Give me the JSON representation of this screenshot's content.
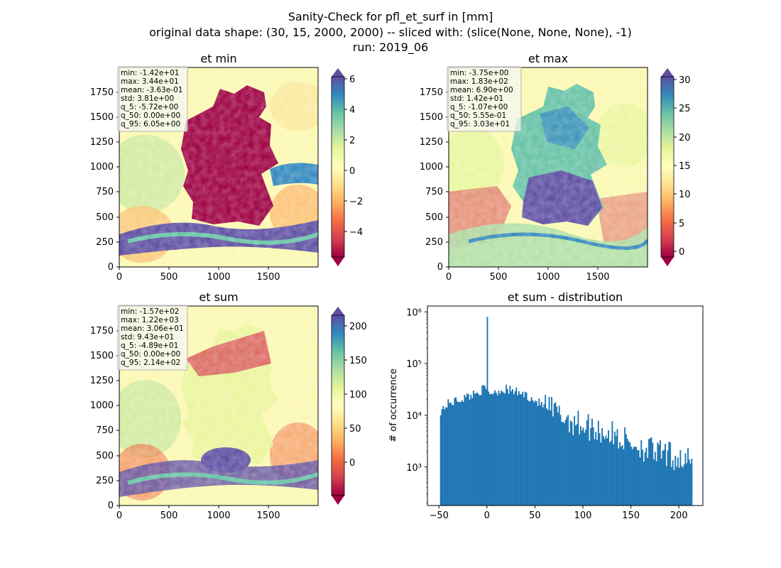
{
  "figure": {
    "title_lines": [
      "Sanity-Check for pfl_et_surf in [mm]",
      "original data shape: (30, 15, 2000, 2000) -- sliced with: (slice(None, None, None), -1)",
      "run: 2019_06"
    ]
  },
  "colors": {
    "hist_bar": "#1f77b4",
    "map_background": "#fbf8b0",
    "germany_dark": "#9e0142",
    "blue_high": "#5e4fa2"
  },
  "chart_data": [
    {
      "type": "heatmap",
      "title": "et min",
      "colormap": "Spectral",
      "xlim": [
        0,
        2000
      ],
      "ylim": [
        0,
        2000
      ],
      "x_ticks": [
        "0",
        "500",
        "1000",
        "1500"
      ],
      "y_ticks": [
        "0",
        "250",
        "500",
        "750",
        "1000",
        "1250",
        "1500",
        "1750"
      ],
      "colorbar": {
        "ticks": [
          "−4",
          "−2",
          "0",
          "2",
          "4",
          "6"
        ],
        "vmin": -5.72,
        "vmax": 6.05,
        "extend": "both"
      },
      "stats": [
        "min: -1.42e+01",
        "max: 3.44e+01",
        "mean: -3.63e-01",
        "std: 3.81e+00",
        "q_5: -5.72e+00",
        "q_50: 0.00e+00",
        "q_95: 6.05e+00"
      ]
    },
    {
      "type": "heatmap",
      "title": "et max",
      "colormap": "Spectral",
      "xlim": [
        0,
        2000
      ],
      "ylim": [
        0,
        2000
      ],
      "x_ticks": [
        "0",
        "500",
        "1000",
        "1500"
      ],
      "y_ticks": [
        "0",
        "250",
        "500",
        "750",
        "1000",
        "1250",
        "1500",
        "1750"
      ],
      "colorbar": {
        "ticks": [
          "0",
          "5",
          "10",
          "15",
          "20",
          "25",
          "30"
        ],
        "vmin": -1.07,
        "vmax": 30.3,
        "extend": "both"
      },
      "stats": [
        "min: -3.75e+00",
        "max: 1.83e+02",
        "mean: 6.90e+00",
        "std: 1.42e+01",
        "q_5: -1.07e+00",
        "q_50: 5.55e-01",
        "q_95: 3.03e+01"
      ]
    },
    {
      "type": "heatmap",
      "title": "et sum",
      "colormap": "Spectral",
      "xlim": [
        0,
        2000
      ],
      "ylim": [
        0,
        2000
      ],
      "x_ticks": [
        "0",
        "500",
        "1000",
        "1500"
      ],
      "y_ticks": [
        "0",
        "250",
        "500",
        "750",
        "1000",
        "1250",
        "1500",
        "1750"
      ],
      "colorbar": {
        "ticks": [
          "0",
          "50",
          "100",
          "150",
          "200"
        ],
        "vmin": -48.9,
        "vmax": 214,
        "extend": "both"
      },
      "stats": [
        "min: -1.57e+02",
        "max: 1.22e+03",
        "mean: 3.06e+01",
        "std: 9.43e+01",
        "q_5: -4.89e+01",
        "q_50: 0.00e+00",
        "q_95: 2.14e+02"
      ]
    },
    {
      "type": "bar",
      "title": "et sum - distribution",
      "ylabel": "# of occurrence",
      "yscale": "log",
      "x_ticks": [
        "−50",
        "0",
        "50",
        "100",
        "150",
        "200"
      ],
      "y_ticks": [
        "10³",
        "10⁴",
        "10⁵",
        "10⁶"
      ],
      "xlim": [
        -62,
        225
      ],
      "ylim": [
        180,
        1300000
      ],
      "bin_range": [
        -48.9,
        214
      ],
      "bin_count": 200,
      "spike": {
        "x": 0,
        "y": 800000
      },
      "approx_counts": [
        {
          "x": -48.9,
          "y": 12000
        },
        {
          "x": -40,
          "y": 17000
        },
        {
          "x": -20,
          "y": 23000
        },
        {
          "x": -2,
          "y": 33000
        },
        {
          "x": 2,
          "y": 27000
        },
        {
          "x": 20,
          "y": 32000
        },
        {
          "x": 40,
          "y": 25000
        },
        {
          "x": 60,
          "y": 15000
        },
        {
          "x": 80,
          "y": 9000
        },
        {
          "x": 100,
          "y": 6500
        },
        {
          "x": 120,
          "y": 5000
        },
        {
          "x": 140,
          "y": 3500
        },
        {
          "x": 160,
          "y": 2500
        },
        {
          "x": 180,
          "y": 1800
        },
        {
          "x": 200,
          "y": 1500
        },
        {
          "x": 214,
          "y": 1200
        }
      ]
    }
  ]
}
